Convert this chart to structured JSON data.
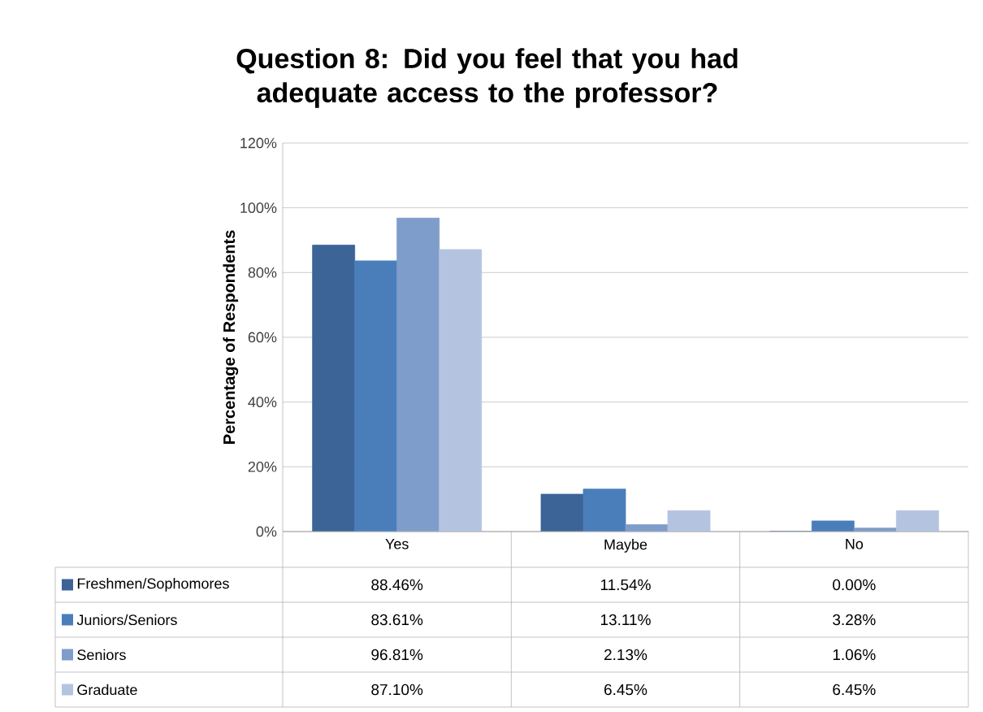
{
  "chart_data": {
    "type": "bar",
    "title": "Question 8: Did you feel that you had adequate access to the professor?",
    "ylabel": "Percentage of Respondents",
    "categories": [
      "Yes",
      "Maybe",
      "No"
    ],
    "series": [
      {
        "name": "Freshmen/Sophomores",
        "color": "#3c6496",
        "values": [
          88.46,
          11.54,
          0.0
        ],
        "value_labels": [
          "88.46%",
          "11.54%",
          "0.00%"
        ]
      },
      {
        "name": "Juniors/Seniors",
        "color": "#4a7ebb",
        "values": [
          83.61,
          13.11,
          3.28
        ],
        "value_labels": [
          "83.61%",
          "13.11%",
          "3.28%"
        ]
      },
      {
        "name": "Seniors",
        "color": "#7f9dcb",
        "values": [
          96.81,
          2.13,
          1.06
        ],
        "value_labels": [
          "96.81%",
          "2.13%",
          "1.06%"
        ]
      },
      {
        "name": "Graduate",
        "color": "#b4c4e0",
        "values": [
          87.1,
          6.45,
          6.45
        ],
        "value_labels": [
          "87.10%",
          "6.45%",
          "6.45%"
        ]
      }
    ],
    "ylim": [
      0,
      120
    ],
    "yticks": [
      {
        "value": 0,
        "label": "0%"
      },
      {
        "value": 20,
        "label": "20%"
      },
      {
        "value": 40,
        "label": "40%"
      },
      {
        "value": 60,
        "label": "60%"
      },
      {
        "value": 80,
        "label": "80%"
      },
      {
        "value": 100,
        "label": "100%"
      },
      {
        "value": 120,
        "label": "120%"
      }
    ],
    "grid": "y",
    "legend": "bottom"
  }
}
